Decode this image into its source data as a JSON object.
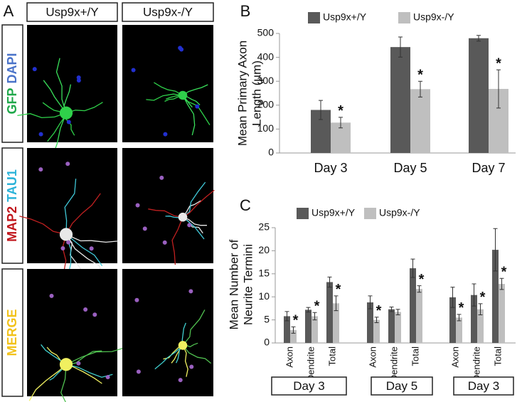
{
  "panel_a": {
    "letter": "A",
    "columns": [
      "Usp9x+/Y",
      "Usp9x-/Y"
    ],
    "rows": [
      [
        {
          "text": "GFP",
          "color": "#1fa84a"
        },
        {
          "text": "DAPI",
          "color": "#4a73c9"
        }
      ],
      [
        {
          "text": "MAP2",
          "color": "#c0151b"
        },
        {
          "text": "TAU1",
          "color": "#2bb3d9"
        }
      ],
      [
        {
          "text": "MERGE",
          "color": "#f2c21a"
        }
      ]
    ]
  },
  "chart_data": [
    {
      "type": "bar",
      "letter": "B",
      "ylabel": [
        "Mean Primary Axon",
        "Length (µm)"
      ],
      "categories": [
        "Day 3",
        "Day 5",
        "Day 7"
      ],
      "series": [
        {
          "name": "Usp9x+/Y",
          "color": "#595959",
          "values": [
            180,
            443,
            480
          ],
          "errors": [
            40,
            42,
            12
          ]
        },
        {
          "name": "Usp9x-/Y",
          "color": "#bfbfbf",
          "values": [
            127,
            267,
            268
          ],
          "errors": [
            22,
            33,
            80
          ],
          "significance": [
            "*",
            "*",
            "*"
          ]
        }
      ],
      "ylim": [
        0,
        500
      ],
      "yticks": [
        0,
        100,
        200,
        300,
        400,
        500
      ]
    },
    {
      "type": "bar",
      "letter": "C",
      "ylabel": [
        "Mean Number of",
        "Neurite Termini"
      ],
      "categories": [
        "Axon",
        "Dendrite",
        "Total",
        "Axon",
        "Dendrite",
        "Total",
        "Axon",
        "Dendrite",
        "Total"
      ],
      "groups": [
        "Day 3",
        "Day 5",
        "Day 3"
      ],
      "series": [
        {
          "name": "Usp9x+/Y",
          "color": "#595959",
          "values": [
            5.8,
            7.2,
            13.2,
            8.8,
            7.3,
            16.2,
            9.9,
            10.4,
            20.2
          ],
          "errors": [
            1,
            0.5,
            1.1,
            1.4,
            0.5,
            2,
            2.2,
            2.4,
            4.6
          ]
        },
        {
          "name": "Usp9x-/Y",
          "color": "#bfbfbf",
          "values": [
            2.8,
            5.8,
            8.6,
            5.0,
            6.7,
            11.7,
            5.5,
            7.3,
            12.8
          ],
          "errors": [
            0.7,
            0.8,
            1.6,
            0.6,
            0.6,
            0.7,
            0.7,
            1.2,
            1.2
          ],
          "significance": [
            "*",
            "*",
            "*",
            "*",
            null,
            "*",
            "*",
            "*",
            "*"
          ]
        }
      ],
      "ylim": [
        0,
        25
      ],
      "yticks": [
        0,
        5,
        10,
        15,
        20,
        25
      ]
    }
  ]
}
